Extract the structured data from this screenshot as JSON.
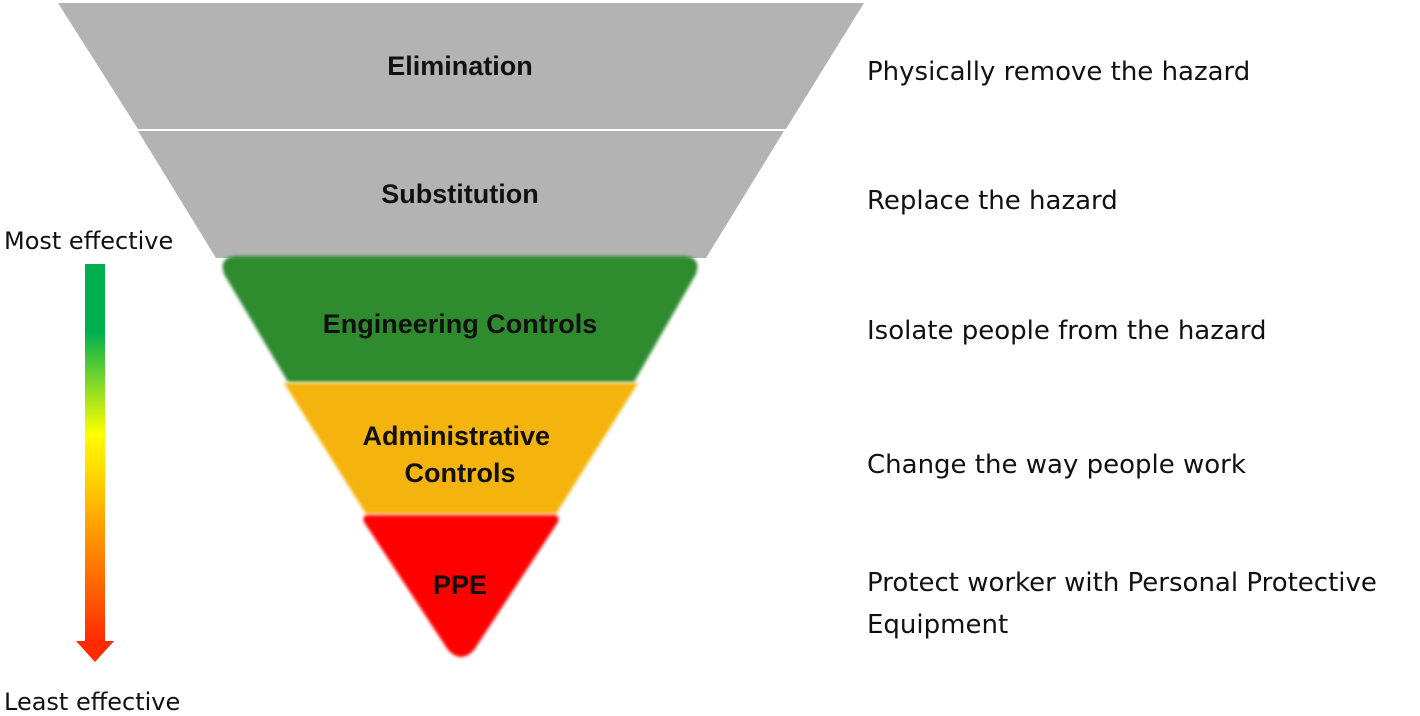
{
  "hierarchy": {
    "levels": [
      {
        "label": [
          "Elimination"
        ],
        "description": "Physically remove the hazard",
        "color": "#b3b3b3"
      },
      {
        "label": [
          "Substitution"
        ],
        "description": "Replace the hazard",
        "color": "#b3b3b3"
      },
      {
        "label": [
          "Engineering Controls"
        ],
        "description": "Isolate people from the hazard",
        "color": "#2e8b2e"
      },
      {
        "label": [
          "Administrative",
          "Controls"
        ],
        "description": "Change the way people work",
        "color": "#f5b40d"
      },
      {
        "label": [
          "PPE"
        ],
        "description": "Protect worker with Personal Protective Equipment",
        "color": "#ff0000"
      }
    ]
  },
  "scale": {
    "top_label": "Most effective",
    "bottom_label": "Least effective",
    "gradient_colors": [
      "#00b050",
      "#ffff00",
      "#ff2a00"
    ]
  }
}
